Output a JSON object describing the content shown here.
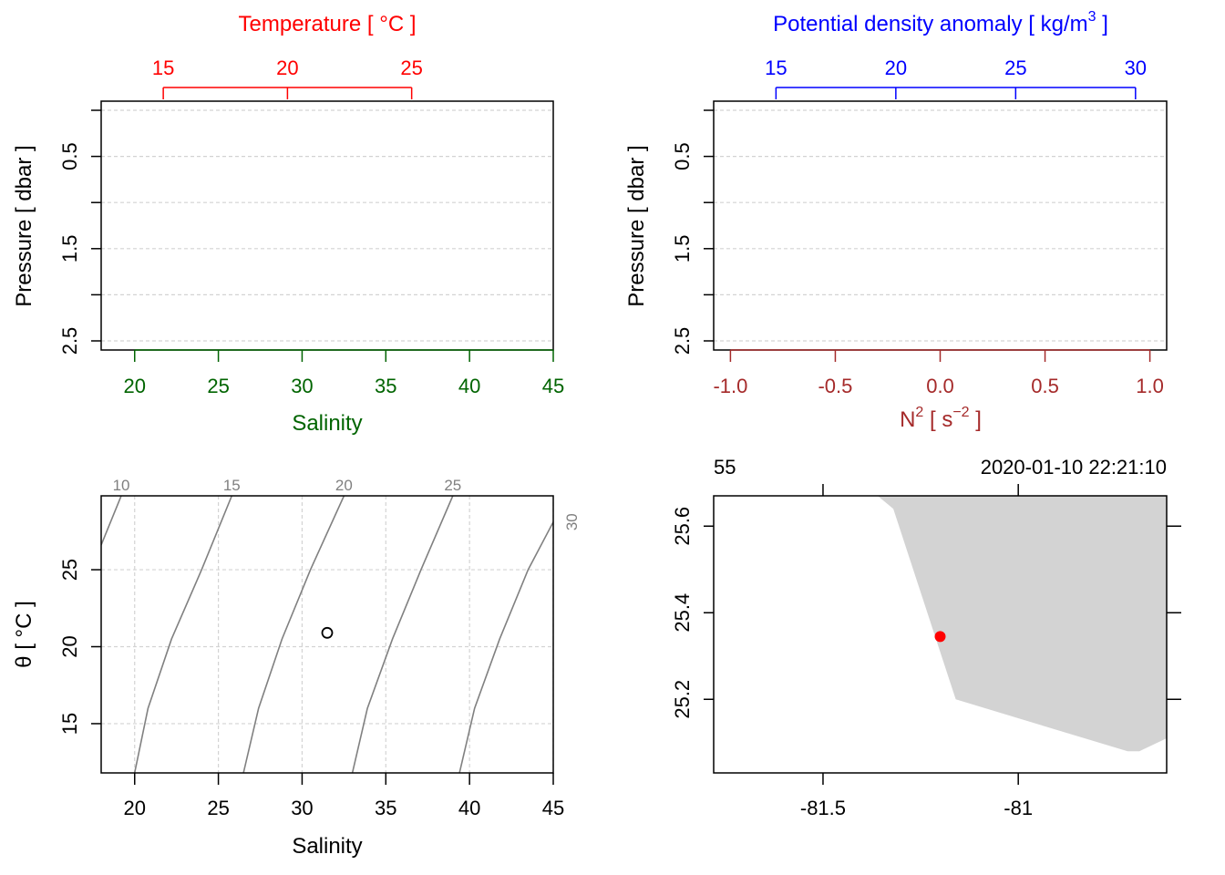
{
  "chart_data": [
    {
      "type": "scatter",
      "panel": "top-left",
      "title": "",
      "ylabel": "Pressure [ dbar ]",
      "y_reversed": true,
      "ylim": [
        2.5,
        0
      ],
      "yticks": [
        0.5,
        1.5,
        2.5
      ],
      "ygrid": [
        0,
        0.5,
        1,
        1.5,
        2,
        2.5
      ],
      "grid": true,
      "top_axis": {
        "label": "Temperature [ °C ]",
        "color": "#ff0000",
        "range": [
          12.5,
          30.7
        ],
        "ticks": [
          15,
          20,
          25
        ]
      },
      "bottom_axis": {
        "label": "Salinity",
        "color": "#006400",
        "range": [
          18,
          45
        ],
        "ticks": [
          20,
          25,
          30,
          35,
          40,
          45
        ]
      },
      "series": []
    },
    {
      "type": "scatter",
      "panel": "top-right",
      "title": "",
      "ylabel": "Pressure [ dbar ]",
      "y_reversed": true,
      "ylim": [
        2.5,
        0
      ],
      "yticks": [
        0.5,
        1.5,
        2.5
      ],
      "ygrid": [
        0,
        0.5,
        1,
        1.5,
        2,
        2.5
      ],
      "grid": true,
      "top_axis": {
        "label": "Potential density anomaly [ kg/m",
        "label_sup": "3",
        "label_end": " ]",
        "color": "#0000ff",
        "range": [
          12.4,
          31.3
        ],
        "ticks": [
          15,
          20,
          25,
          30
        ]
      },
      "bottom_axis": {
        "label": "N",
        "label_sup": "2",
        "label_mid": " [ s",
        "label_sup2": "−2",
        "label_end": " ]",
        "color": "#a52a2a",
        "range": [
          -1.08,
          1.08
        ],
        "ticks": [
          -1.0,
          -0.5,
          0.0,
          0.5,
          1.0
        ],
        "tick_labels": [
          "-1.0",
          "-0.5",
          "0.0",
          "0.5",
          "1.0"
        ]
      },
      "series": []
    },
    {
      "type": "scatter",
      "panel": "bottom-left",
      "title": "",
      "xlabel": "Salinity",
      "ylabel": "θ [ °C ]",
      "xlim": [
        18,
        45
      ],
      "ylim": [
        11.8,
        29.8
      ],
      "xticks": [
        20,
        25,
        30,
        35,
        40,
        45
      ],
      "yticks": [
        15,
        20,
        25
      ],
      "grid": true,
      "isopycnals": [
        {
          "label": "10",
          "points": [
            [
              18,
              26.6
            ],
            [
              19.2,
              29.8
            ]
          ]
        },
        {
          "label": "15",
          "points": [
            [
              20,
              11.8
            ],
            [
              20.8,
              16
            ],
            [
              22.2,
              20.5
            ],
            [
              24,
              25
            ],
            [
              25.8,
              29.8
            ]
          ]
        },
        {
          "label": "20",
          "points": [
            [
              26.5,
              11.8
            ],
            [
              27.4,
              16
            ],
            [
              28.8,
              20.5
            ],
            [
              30.5,
              25
            ],
            [
              32.5,
              29.8
            ]
          ]
        },
        {
          "label": "25",
          "points": [
            [
              33,
              11.8
            ],
            [
              33.9,
              16
            ],
            [
              35.4,
              20.5
            ],
            [
              37.1,
              25
            ],
            [
              39,
              29.8
            ]
          ]
        },
        {
          "label": "30",
          "points": [
            [
              39.4,
              11.8
            ],
            [
              40.3,
              16
            ],
            [
              41.8,
              20.5
            ],
            [
              43.5,
              25
            ],
            [
              45,
              28.1
            ]
          ]
        }
      ],
      "series": [
        {
          "values": [
            [
              31.5,
              20.9
            ]
          ],
          "marker": "open-circle"
        }
      ]
    },
    {
      "type": "map",
      "panel": "bottom-right",
      "title": "",
      "station_label": "55",
      "datetime_label": "2020-01-10 22:21:10",
      "xlim": [
        -81.78,
        -80.62
      ],
      "ylim": [
        25.03,
        25.67
      ],
      "xticks": [
        -81.5,
        -81
      ],
      "xtick_labels": [
        "-81.5",
        "-81"
      ],
      "yticks": [
        25.2,
        25.4,
        25.6
      ],
      "ytick_labels": [
        "25.2",
        "25.4",
        "25.6"
      ],
      "land_color": "#d3d3d3",
      "land_polygon": [
        [
          -81.36,
          25.67
        ],
        [
          -81.32,
          25.64
        ],
        [
          -81.16,
          25.2
        ],
        [
          -80.72,
          25.08
        ],
        [
          -80.69,
          25.08
        ],
        [
          -80.62,
          25.11
        ],
        [
          -80.62,
          25.67
        ]
      ],
      "station": {
        "lon": -81.2,
        "lat": 25.345,
        "color": "#ff0000"
      }
    }
  ]
}
